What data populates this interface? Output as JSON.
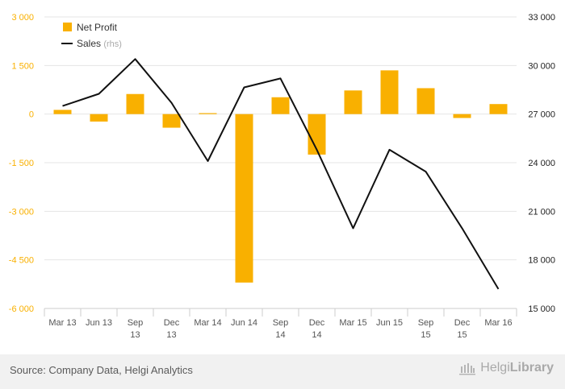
{
  "chart_data": {
    "type": "bar+line",
    "categories": [
      "Mar 13",
      "Jun 13",
      "Sep 13",
      "Dec 13",
      "Mar 14",
      "Jun 14",
      "Sep 14",
      "Dec 14",
      "Mar 15",
      "Jun 15",
      "Sep 15",
      "Dec 15",
      "Mar 16"
    ],
    "category_labels": [
      [
        "Mar 13"
      ],
      [
        "Jun 13"
      ],
      [
        "Sep",
        "13"
      ],
      [
        "Dec",
        "13"
      ],
      [
        "Mar 14"
      ],
      [
        "Jun 14"
      ],
      [
        "Sep",
        "14"
      ],
      [
        "Dec",
        "14"
      ],
      [
        "Mar 15"
      ],
      [
        "Jun 15"
      ],
      [
        "Sep",
        "15"
      ],
      [
        "Dec",
        "15"
      ],
      [
        "Mar 16"
      ]
    ],
    "series": [
      {
        "name": "Net Profit",
        "type": "bar",
        "axis": "left",
        "color": "#f9b000",
        "values": [
          130,
          -230,
          620,
          -420,
          30,
          -5200,
          520,
          -1250,
          730,
          1350,
          800,
          -120,
          310
        ]
      },
      {
        "name": "Sales",
        "name_suffix": "(rhs)",
        "type": "line",
        "axis": "right",
        "color": "#111111",
        "values": [
          27500,
          28250,
          30400,
          27700,
          24100,
          28650,
          29200,
          24800,
          19950,
          24800,
          23450,
          19950,
          16200
        ]
      }
    ],
    "y_left": {
      "min": -6000,
      "max": 3000,
      "ticks": [
        3000,
        1500,
        0,
        -1500,
        -3000,
        -4500,
        -6000
      ],
      "tick_labels": [
        "3 000",
        "1 500",
        "0",
        "-1 500",
        "-3 000",
        "-4 500",
        "-6 000"
      ],
      "color": "#f9b000"
    },
    "y_right": {
      "min": 15000,
      "max": 33000,
      "ticks": [
        33000,
        30000,
        27000,
        24000,
        21000,
        18000,
        15000
      ],
      "tick_labels": [
        "33 000",
        "30 000",
        "27 000",
        "24 000",
        "21 000",
        "18 000",
        "15 000"
      ],
      "color": "#222222"
    },
    "grid": true,
    "legend": "top-left"
  },
  "footer": {
    "source": "Source: Company Data, Helgi Analytics",
    "logo_light": "Helgi",
    "logo_bold": "Library"
  }
}
